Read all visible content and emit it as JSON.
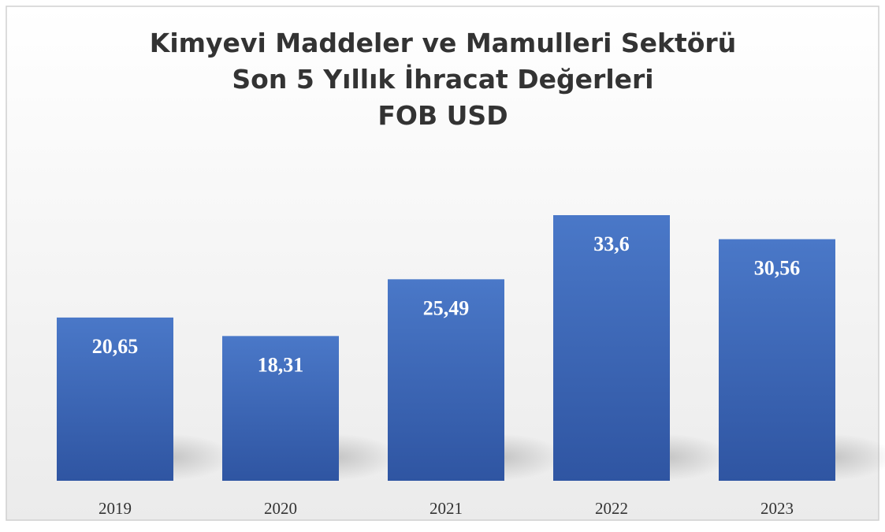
{
  "chart_data": {
    "type": "bar",
    "title": [
      "Kimyevi Maddeler ve Mamulleri Sektörü",
      "Son 5 Yıllık İhracat Değerleri",
      "FOB USD"
    ],
    "categories": [
      "2019",
      "2020",
      "2021",
      "2022",
      "2023"
    ],
    "values": [
      20.65,
      18.31,
      25.49,
      33.6,
      30.56
    ],
    "value_labels": [
      "20,65",
      "18,31",
      "25,49",
      "33,6",
      "30,56"
    ],
    "color": "#4472c4"
  }
}
